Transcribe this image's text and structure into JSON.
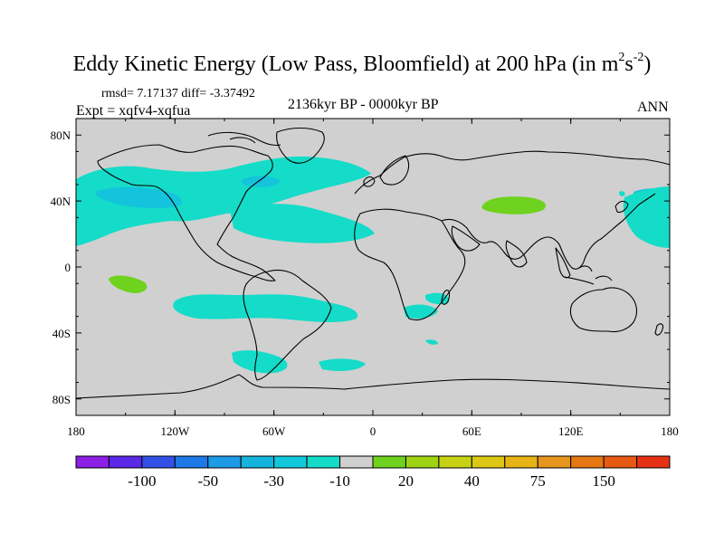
{
  "header": {
    "title_main": "Eddy Kinetic Energy (Low Pass, Bloomfield) at 200 hPa (in m",
    "title_sup1": "2",
    "title_mid": "s",
    "title_sup2": "-2",
    "title_end": ")",
    "stats": "rmsd= 7.17137 diff= -3.37492",
    "experiment": "Expt = xqfv4-xqfua",
    "period": "2136kyr BP - 0000kyr BP",
    "season": "ANN"
  },
  "map": {
    "lat_labels": [
      "80N",
      "40N",
      "0",
      "40S",
      "80S"
    ],
    "lon_labels": [
      "180",
      "120W",
      "60W",
      "0",
      "60E",
      "120E",
      "180"
    ],
    "colors": {
      "background": "#d0d0d0",
      "negative_small": "#14dcc8",
      "negative_mid": "#14c3dc",
      "positive_small": "#6ed21e"
    }
  },
  "colorbar": {
    "colors": [
      "#8c1ee6",
      "#5a28e6",
      "#3250e6",
      "#1e78e6",
      "#1e9be6",
      "#14b4dc",
      "#14c8dc",
      "#14dcc8",
      "#d0d0d0",
      "#6ed21e",
      "#a0d214",
      "#c8d214",
      "#dcc814",
      "#e6b414",
      "#e6961e",
      "#e67814",
      "#e65a14",
      "#e63214"
    ],
    "labels": [
      "-100",
      "-50",
      "-30",
      "-10",
      "20",
      "40",
      "75",
      "150"
    ]
  }
}
